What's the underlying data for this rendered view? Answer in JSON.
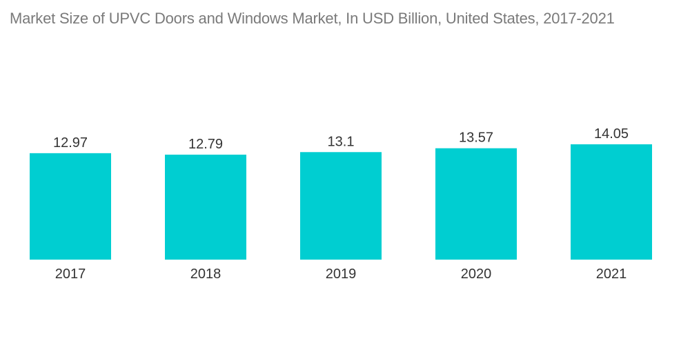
{
  "chart_data": {
    "type": "bar",
    "title": "Market Size of UPVC Doors and Windows Market, In USD Billion, United States, 2017-2021",
    "categories": [
      "2017",
      "2018",
      "2019",
      "2020",
      "2021"
    ],
    "values": [
      12.97,
      12.79,
      13.1,
      13.57,
      14.05
    ],
    "value_labels": [
      "12.97",
      "12.79",
      "13.1",
      "13.57",
      "14.05"
    ],
    "xlabel": "",
    "ylabel": "",
    "ylim": [
      0,
      14.05
    ],
    "grid": false,
    "legend": "none",
    "bar_color": "#00ced1"
  }
}
